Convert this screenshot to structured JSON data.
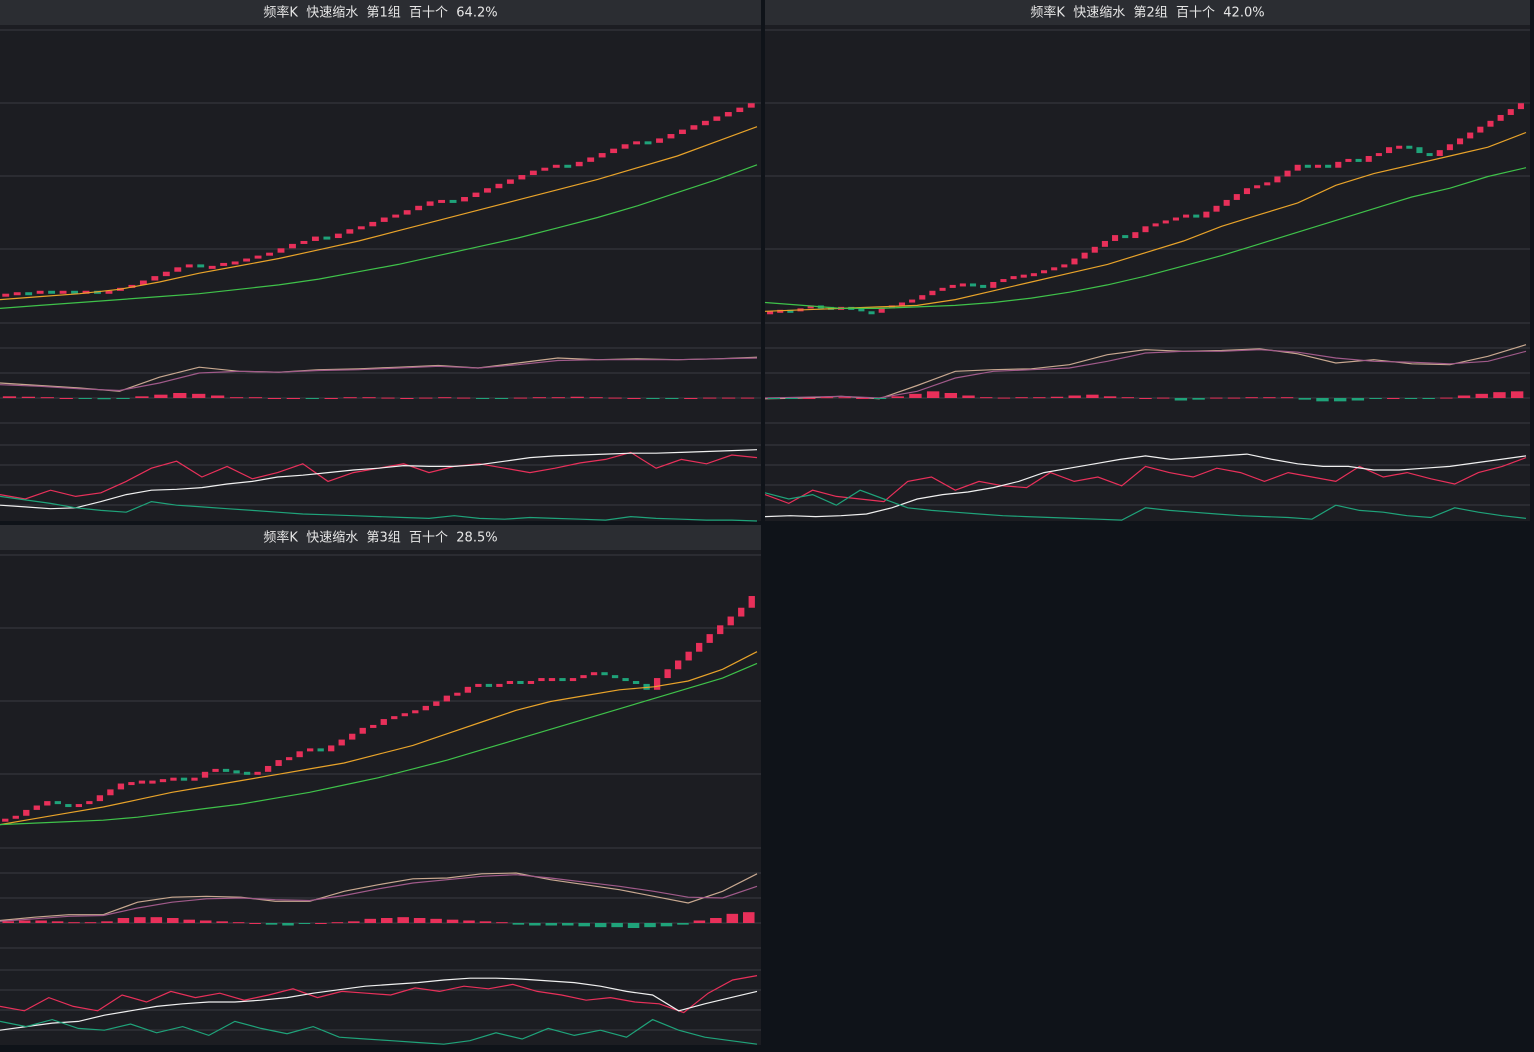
{
  "chart_data": [
    {
      "type": "candlestick",
      "title": "频率K  快速缩水  第1组  百十个  64.2%",
      "ylim": [
        0,
        100
      ],
      "macd_ylim": [
        -3,
        6
      ],
      "kdj_ylim": [
        0,
        100
      ],
      "up_color": "#e8305a",
      "down_color": "#1fa37a",
      "closes": [
        10,
        10.5,
        10,
        11,
        10.5,
        11,
        10.5,
        11,
        10.5,
        11,
        12,
        13,
        14.5,
        16,
        17.5,
        19,
        20,
        19,
        19.5,
        20.5,
        21,
        22,
        23,
        24,
        25.5,
        27,
        28,
        29.5,
        29,
        30.5,
        32,
        33,
        34.5,
        36,
        37,
        38.5,
        40,
        41.5,
        42,
        41.5,
        43,
        44.5,
        46,
        47.5,
        49,
        50.5,
        52,
        53,
        54,
        53.5,
        55,
        56.5,
        58,
        59.5,
        61,
        62,
        61.5,
        63,
        64.5,
        66,
        67.5,
        69,
        70.5,
        72,
        73.5,
        75
      ],
      "series": [
        {
          "pane": "main",
          "color": "#e8a32a",
          "values": [
            8,
            9,
            10,
            11.5,
            14,
            17,
            19.5,
            22,
            25,
            28,
            31.5,
            35,
            38.5,
            42,
            45.5,
            49,
            53,
            57,
            62,
            67
          ]
        },
        {
          "pane": "main",
          "color": "#3fc24a",
          "values": [
            5,
            6,
            7,
            8,
            9,
            10,
            11.5,
            13,
            15,
            17.5,
            20,
            23,
            26,
            29,
            32.5,
            36,
            40,
            44.5,
            49,
            54
          ]
        },
        {
          "pane": "macd",
          "color": "#c8a890",
          "values": [
            1.8,
            1.5,
            1.2,
            0.8,
            2.5,
            3.7,
            3.2,
            3.1,
            3.4,
            3.5,
            3.7,
            3.9,
            3.6,
            4.2,
            4.8,
            4.6,
            4.7,
            4.6,
            4.7,
            4.9
          ]
        },
        {
          "pane": "macd",
          "color": "#a05a8a",
          "values": [
            1.6,
            1.4,
            1.1,
            0.9,
            1.8,
            3.0,
            3.2,
            3.1,
            3.3,
            3.4,
            3.6,
            3.8,
            3.6,
            4.0,
            4.5,
            4.6,
            4.6,
            4.6,
            4.7,
            4.8
          ]
        },
        {
          "pane": "hist",
          "values": [
            0.2,
            0.15,
            0.1,
            0,
            -0.1,
            -0.15,
            -0.1,
            0.2,
            0.4,
            0.6,
            0.5,
            0.3,
            0.1,
            0.1,
            0,
            0,
            -0.1,
            0,
            0.1,
            0.1,
            0.05,
            0,
            0.05,
            0.1,
            0.05,
            -0.1,
            -0.1,
            0.05,
            0.1,
            0.1,
            0.15,
            0.1,
            0.05,
            0,
            -0.05,
            -0.05,
            0,
            0.05,
            0.05,
            0.05
          ]
        },
        {
          "pane": "kdj",
          "color": "#e8305a",
          "values": [
            30,
            25,
            35,
            28,
            32,
            45,
            60,
            68,
            50,
            62,
            48,
            55,
            65,
            45,
            55,
            60,
            65,
            55,
            62,
            65,
            60,
            55,
            60,
            66,
            70,
            78,
            60,
            70,
            65,
            75,
            72
          ]
        },
        {
          "pane": "kdj",
          "color": "#f0f0f0",
          "values": [
            18,
            16,
            14,
            15,
            22,
            30,
            35,
            36,
            38,
            42,
            45,
            50,
            52,
            55,
            58,
            60,
            63,
            62,
            62,
            64,
            68,
            72,
            74,
            75,
            76,
            77,
            77,
            78,
            79,
            80,
            81
          ]
        },
        {
          "pane": "kdj",
          "color": "#1fa37a",
          "values": [
            28,
            24,
            20,
            15,
            12,
            10,
            22,
            18,
            16,
            14,
            12,
            10,
            8,
            7,
            6,
            5,
            4,
            3,
            6,
            3,
            2,
            4,
            3,
            2,
            1,
            5,
            3,
            2,
            1,
            1,
            0
          ]
        }
      ]
    },
    {
      "type": "candlestick",
      "title": "频率K  快速缩水  第2组  百十个  42.0%",
      "ylim": [
        0,
        100
      ],
      "macd_ylim": [
        -3,
        6
      ],
      "kdj_ylim": [
        0,
        100
      ],
      "up_color": "#e8305a",
      "down_color": "#1fa37a",
      "closes": [
        4,
        4.5,
        4,
        5,
        6,
        5.5,
        5,
        5.5,
        5,
        4,
        3.5,
        5,
        6,
        7,
        8,
        9.5,
        11,
        12,
        13,
        13.5,
        13,
        12,
        14,
        15,
        16,
        16.5,
        17,
        18,
        19,
        20,
        22,
        24,
        26,
        28,
        30,
        29,
        31,
        33,
        34,
        35,
        36,
        37,
        36,
        38,
        40,
        42,
        44,
        46,
        47,
        48,
        50,
        52,
        54,
        53,
        54,
        53,
        55,
        56,
        55,
        57,
        58,
        60,
        60.5,
        60,
        58,
        57,
        59,
        61,
        63,
        65,
        67,
        69,
        71,
        73,
        75
      ],
      "series": [
        {
          "pane": "main",
          "color": "#e8a32a",
          "values": [
            4,
            4.5,
            5,
            5.5,
            6,
            8,
            11,
            14,
            17,
            20,
            24,
            28,
            33,
            37,
            41,
            47,
            51,
            54,
            57,
            60,
            65
          ]
        },
        {
          "pane": "main",
          "color": "#3fc24a",
          "values": [
            7,
            6,
            5,
            5,
            5.5,
            6,
            7,
            8.5,
            10.5,
            13,
            16,
            19.5,
            23,
            27,
            31,
            35,
            39,
            43,
            46,
            50,
            53
          ]
        },
        {
          "pane": "macd",
          "color": "#c8a890",
          "values": [
            -0.1,
            0,
            0.2,
            -0.1,
            1.5,
            3.2,
            3.4,
            3.5,
            4.0,
            5.2,
            5.8,
            5.6,
            5.7,
            5.9,
            5.3,
            4.2,
            4.6,
            4.1,
            4.0,
            5.0,
            6.4
          ]
        },
        {
          "pane": "macd",
          "color": "#a05a8a",
          "values": [
            0,
            0.1,
            0.2,
            0,
            0.8,
            2.4,
            3.2,
            3.4,
            3.6,
            4.4,
            5.4,
            5.6,
            5.6,
            5.8,
            5.5,
            4.8,
            4.4,
            4.3,
            4.1,
            4.4,
            5.6
          ]
        },
        {
          "pane": "hist",
          "values": [
            -0.1,
            -0.1,
            0,
            0.1,
            0.1,
            0,
            -0.05,
            0.2,
            0.5,
            0.8,
            0.6,
            0.3,
            0.1,
            0.05,
            0.1,
            0.1,
            0.15,
            0.3,
            0.4,
            0.2,
            0.1,
            0,
            0.05,
            -0.3,
            -0.2,
            0.05,
            0.05,
            0.1,
            0.1,
            0.1,
            -0.2,
            -0.4,
            -0.4,
            -0.3,
            -0.1,
            0,
            -0.1,
            -0.1,
            0.05,
            0.3,
            0.5,
            0.7,
            0.8
          ]
        },
        {
          "pane": "kdj",
          "color": "#e8305a",
          "values": [
            30,
            20,
            35,
            28,
            25,
            22,
            45,
            50,
            35,
            45,
            40,
            38,
            55,
            45,
            50,
            40,
            62,
            55,
            50,
            60,
            55,
            45,
            55,
            50,
            45,
            62,
            50,
            55,
            48,
            42,
            55,
            62,
            72
          ]
        },
        {
          "pane": "kdj",
          "color": "#f0f0f0",
          "values": [
            5,
            6,
            5,
            6,
            8,
            15,
            25,
            30,
            33,
            38,
            45,
            55,
            60,
            65,
            70,
            74,
            70,
            72,
            74,
            76,
            70,
            65,
            62,
            62,
            58,
            58,
            60,
            62,
            66,
            70,
            74
          ]
        },
        {
          "pane": "kdj",
          "color": "#1fa37a",
          "values": [
            32,
            25,
            30,
            18,
            35,
            25,
            15,
            12,
            10,
            8,
            6,
            5,
            4,
            3,
            2,
            1,
            15,
            12,
            10,
            8,
            6,
            5,
            4,
            2,
            18,
            12,
            10,
            6,
            4,
            15,
            10,
            6,
            3
          ]
        }
      ]
    },
    {
      "type": "candlestick",
      "title": "频率K  快速缩水  第3组  百十个  28.5%",
      "ylim": [
        0,
        100
      ],
      "macd_ylim": [
        -3,
        6
      ],
      "kdj_ylim": [
        0,
        100
      ],
      "up_color": "#e8305a",
      "down_color": "#1fa37a",
      "closes": [
        10,
        11,
        13,
        14.5,
        16,
        15,
        14,
        15,
        16,
        18,
        20,
        22,
        22.5,
        23,
        23,
        23.5,
        24,
        23,
        24,
        26,
        27,
        26.5,
        26,
        25,
        26,
        28,
        30,
        31,
        33,
        34,
        33,
        35,
        37,
        39,
        41,
        42,
        44,
        45,
        46,
        47,
        48.5,
        50,
        52,
        53,
        55,
        56,
        55,
        56,
        57,
        56,
        57,
        58,
        58,
        57,
        58,
        59,
        60,
        59,
        58,
        57,
        56,
        54,
        58,
        61,
        64,
        67,
        70,
        73,
        76,
        79,
        82,
        86
      ],
      "series": [
        {
          "pane": "main",
          "color": "#e8a32a",
          "values": [
            8,
            10,
            12,
            14,
            16.5,
            19,
            21,
            23,
            25,
            27,
            29,
            32,
            35,
            39,
            43,
            47,
            50,
            52,
            54,
            55,
            57,
            61,
            67
          ]
        },
        {
          "pane": "main",
          "color": "#3fc24a",
          "values": [
            8,
            8.5,
            9,
            9.5,
            10.5,
            12,
            13.5,
            15,
            17,
            19,
            21.5,
            24,
            27,
            30,
            33.5,
            37,
            40.5,
            44,
            47.5,
            51,
            54.5,
            58,
            63
          ]
        },
        {
          "pane": "macd",
          "color": "#c8a890",
          "values": [
            0.3,
            0.7,
            1.0,
            1.0,
            2.5,
            3.1,
            3.2,
            3.1,
            2.6,
            2.6,
            3.8,
            4.6,
            5.3,
            5.4,
            5.9,
            6.0,
            5.2,
            4.6,
            4.0,
            3.2,
            2.4,
            3.8,
            5.9
          ]
        },
        {
          "pane": "macd",
          "color": "#a05a8a",
          "values": [
            0.2,
            0.5,
            0.8,
            0.9,
            1.8,
            2.5,
            2.9,
            3.0,
            2.8,
            2.7,
            3.3,
            4.1,
            4.8,
            5.2,
            5.6,
            5.8,
            5.4,
            4.9,
            4.4,
            3.8,
            3.1,
            3.0,
            4.4
          ]
        },
        {
          "pane": "hist",
          "values": [
            0.2,
            0.3,
            0.3,
            0.2,
            0.1,
            0.1,
            0.2,
            0.6,
            0.7,
            0.7,
            0.6,
            0.4,
            0.3,
            0.2,
            0.1,
            0,
            -0.2,
            -0.3,
            -0.1,
            0,
            0.1,
            0.2,
            0.5,
            0.6,
            0.7,
            0.6,
            0.5,
            0.4,
            0.3,
            0.2,
            0.1,
            -0.2,
            -0.3,
            -0.3,
            -0.3,
            -0.4,
            -0.5,
            -0.5,
            -0.6,
            -0.5,
            -0.4,
            -0.2,
            0.3,
            0.6,
            1.1,
            1.3
          ]
        },
        {
          "pane": "kdj",
          "color": "#e8305a",
          "values": [
            45,
            40,
            55,
            45,
            40,
            58,
            50,
            62,
            55,
            60,
            52,
            58,
            65,
            55,
            62,
            60,
            58,
            66,
            62,
            68,
            65,
            70,
            62,
            58,
            52,
            55,
            50,
            48,
            38,
            60,
            75,
            80
          ]
        },
        {
          "pane": "kdj",
          "color": "#f0f0f0",
          "values": [
            18,
            22,
            26,
            28,
            35,
            40,
            45,
            48,
            50,
            50,
            52,
            55,
            60,
            64,
            68,
            70,
            72,
            75,
            77,
            77,
            76,
            74,
            72,
            68,
            62,
            58,
            40,
            48,
            55,
            62
          ]
        },
        {
          "pane": "kdj",
          "color": "#1fa37a",
          "values": [
            28,
            22,
            30,
            20,
            18,
            25,
            15,
            22,
            12,
            28,
            20,
            14,
            22,
            10,
            8,
            6,
            4,
            2,
            6,
            15,
            8,
            20,
            12,
            18,
            10,
            30,
            18,
            10,
            6,
            2
          ]
        }
      ]
    }
  ]
}
